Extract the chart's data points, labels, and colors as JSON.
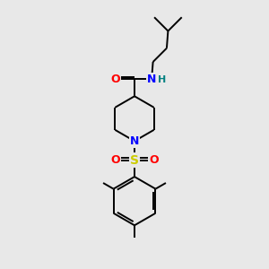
{
  "background_color": "#e8e8e8",
  "bond_color": "#000000",
  "atom_colors": {
    "N_amide": "#0000ff",
    "N_pip": "#0000ff",
    "O": "#ff0000",
    "S": "#cccc00",
    "H": "#008080",
    "C": "#000000"
  },
  "line_width": 1.4,
  "figsize": [
    3.0,
    3.0
  ],
  "dpi": 100,
  "xlim": [
    0,
    10
  ],
  "ylim": [
    0,
    10
  ]
}
